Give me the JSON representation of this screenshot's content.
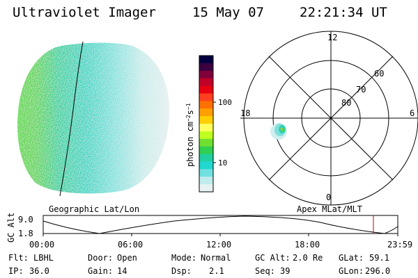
{
  "header": {
    "instrument": "Ultraviolet Imager",
    "date": "15 May 07",
    "time": "22:21:34 UT"
  },
  "image_panel": {
    "label": "Geographic Lat/Lon"
  },
  "colorbar": {
    "unit_label": "photon cm",
    "unit_exp1": "−2",
    "unit_mid": "s",
    "unit_exp2": "−1",
    "tick_100": "100",
    "tick_10": "10",
    "scale": "log",
    "colors": [
      "#000040",
      "#3a0040",
      "#80003a",
      "#c00028",
      "#e80010",
      "#ff4020",
      "#ff7000",
      "#ffa000",
      "#ffd000",
      "#ffff60",
      "#c0ff20",
      "#70e030",
      "#30d050",
      "#20d0a0",
      "#20d8d0",
      "#70e0e0",
      "#c0ecec",
      "#e8f2f2"
    ]
  },
  "polar_panel": {
    "label": "Apex MLat/MLT",
    "mlt_top": "12",
    "mlt_left": "18",
    "mlt_right": "6",
    "mlt_bottom": "0",
    "lat_60": "60",
    "lat_70": "70",
    "lat_80": "80"
  },
  "altitude_plot": {
    "ylabel": "GC Alt",
    "ytick_top": "9.0",
    "ytick_bottom": "1.8",
    "xticks": [
      "00:00",
      "06:00",
      "12:00",
      "18:00",
      "23:59"
    ],
    "current_time_color": "#cc0000"
  },
  "status": {
    "flt_label": "Flt:",
    "flt_value": "LBHL",
    "ip_label": "IP:",
    "ip_value": "36.0",
    "door_label": "Door:",
    "door_value": "Open",
    "gain_label": "Gain:",
    "gain_value": "14",
    "mode_label": "Mode:",
    "mode_value": "Normal",
    "dsp_label": "Dsp:",
    "dsp_value": "2.1",
    "gcalt_label": "GC Alt:",
    "gcalt_value": "2.0 Re",
    "seq_label": "Seq:",
    "seq_value": "39",
    "glat_label": "GLat:",
    "glat_value": "59.1",
    "glon_label": "GLon:",
    "glon_value": "296.0"
  }
}
